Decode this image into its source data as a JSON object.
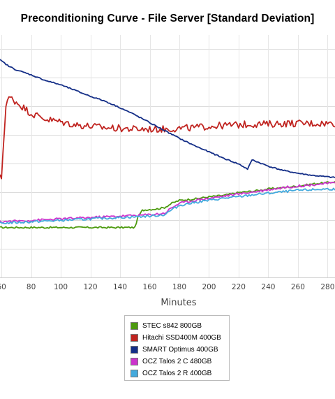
{
  "chart_data": {
    "type": "line",
    "title": "Preconditioning Curve - File Server [Standard Deviation]",
    "xlabel": "Minutes",
    "ylabel": "",
    "x_ticks": [
      60,
      80,
      100,
      120,
      140,
      160,
      180,
      200,
      220,
      240,
      260,
      280
    ],
    "x_tick_labels": [
      "60",
      "80",
      "100",
      "120",
      "140",
      "160",
      "180",
      "200",
      "220",
      "240",
      "260",
      "280"
    ],
    "xlim": [
      59,
      285
    ],
    "ylim": [
      0,
      340
    ],
    "y_gridlines": [
      40,
      80,
      120,
      160,
      200,
      240,
      280,
      320
    ],
    "legend_position": "bottom-center",
    "series": [
      {
        "name": "STEC s842 800GB",
        "color": "#4c9a0e",
        "points": [
          [
            59,
            70
          ],
          [
            62,
            70
          ],
          [
            70,
            70
          ],
          [
            80,
            70
          ],
          [
            90,
            70
          ],
          [
            100,
            70
          ],
          [
            110,
            70
          ],
          [
            120,
            70
          ],
          [
            130,
            70
          ],
          [
            140,
            70
          ],
          [
            150,
            70
          ],
          [
            152,
            84
          ],
          [
            155,
            94
          ],
          [
            158,
            95
          ],
          [
            165,
            96
          ],
          [
            170,
            98
          ],
          [
            175,
            104
          ],
          [
            180,
            108
          ],
          [
            190,
            110
          ],
          [
            200,
            113
          ],
          [
            210,
            115
          ],
          [
            220,
            119
          ],
          [
            230,
            121
          ],
          [
            240,
            124
          ],
          [
            250,
            126
          ],
          [
            260,
            128
          ],
          [
            270,
            131
          ],
          [
            280,
            133
          ],
          [
            285,
            134
          ]
        ]
      },
      {
        "name": "Hitachi SSD400M 400GB",
        "color": "#c02420",
        "points": [
          [
            59,
            140
          ],
          [
            60,
            140
          ],
          [
            61,
            175
          ],
          [
            62,
            210
          ],
          [
            63,
            240
          ],
          [
            64,
            248
          ],
          [
            66,
            252
          ],
          [
            70,
            246
          ],
          [
            75,
            238
          ],
          [
            80,
            230
          ],
          [
            90,
            222
          ],
          [
            100,
            218
          ],
          [
            110,
            214
          ],
          [
            120,
            212
          ],
          [
            130,
            210
          ],
          [
            140,
            209
          ],
          [
            150,
            208
          ],
          [
            160,
            208
          ],
          [
            170,
            208
          ],
          [
            180,
            209
          ],
          [
            190,
            210
          ],
          [
            200,
            212
          ],
          [
            210,
            213
          ],
          [
            220,
            214
          ],
          [
            230,
            215
          ],
          [
            240,
            215
          ],
          [
            250,
            216
          ],
          [
            260,
            216
          ],
          [
            270,
            216
          ],
          [
            280,
            216
          ],
          [
            285,
            216
          ]
        ]
      },
      {
        "name": "SMART Optimus 400GB",
        "color": "#142e87",
        "points": [
          [
            59,
            305
          ],
          [
            65,
            296
          ],
          [
            70,
            291
          ],
          [
            80,
            284
          ],
          [
            90,
            276
          ],
          [
            100,
            270
          ],
          [
            110,
            262
          ],
          [
            120,
            254
          ],
          [
            130,
            247
          ],
          [
            140,
            238
          ],
          [
            150,
            228
          ],
          [
            160,
            217
          ],
          [
            170,
            206
          ],
          [
            180,
            195
          ],
          [
            190,
            185
          ],
          [
            200,
            176
          ],
          [
            210,
            167
          ],
          [
            220,
            159
          ],
          [
            226,
            152
          ],
          [
            228,
            160
          ],
          [
            229,
            165
          ],
          [
            235,
            160
          ],
          [
            240,
            156
          ],
          [
            250,
            150
          ],
          [
            260,
            146
          ],
          [
            270,
            143
          ],
          [
            280,
            141
          ],
          [
            285,
            140
          ]
        ]
      },
      {
        "name": "OCZ Talos 2 C 480GB",
        "color": "#cc33cc",
        "points": [
          [
            59,
            78
          ],
          [
            70,
            79
          ],
          [
            80,
            80
          ],
          [
            90,
            81
          ],
          [
            100,
            82
          ],
          [
            110,
            83
          ],
          [
            120,
            84
          ],
          [
            130,
            85
          ],
          [
            140,
            86
          ],
          [
            150,
            87
          ],
          [
            160,
            88
          ],
          [
            170,
            90
          ],
          [
            175,
            98
          ],
          [
            180,
            104
          ],
          [
            190,
            108
          ],
          [
            200,
            111
          ],
          [
            210,
            114
          ],
          [
            220,
            117
          ],
          [
            230,
            120
          ],
          [
            240,
            123
          ],
          [
            250,
            126
          ],
          [
            260,
            128
          ],
          [
            270,
            130
          ],
          [
            280,
            132
          ],
          [
            285,
            132
          ]
        ]
      },
      {
        "name": "OCZ Talos 2 R 400GB",
        "color": "#44aadd",
        "points": [
          [
            59,
            76
          ],
          [
            70,
            77
          ],
          [
            80,
            78
          ],
          [
            90,
            79
          ],
          [
            100,
            80
          ],
          [
            110,
            81
          ],
          [
            120,
            82
          ],
          [
            130,
            83
          ],
          [
            140,
            84
          ],
          [
            150,
            85
          ],
          [
            160,
            86
          ],
          [
            170,
            88
          ],
          [
            175,
            95
          ],
          [
            180,
            101
          ],
          [
            190,
            105
          ],
          [
            200,
            108
          ],
          [
            210,
            111
          ],
          [
            220,
            113
          ],
          [
            230,
            116
          ],
          [
            240,
            118
          ],
          [
            250,
            120
          ],
          [
            260,
            122
          ],
          [
            270,
            123
          ],
          [
            280,
            124
          ],
          [
            285,
            124
          ]
        ]
      }
    ]
  }
}
